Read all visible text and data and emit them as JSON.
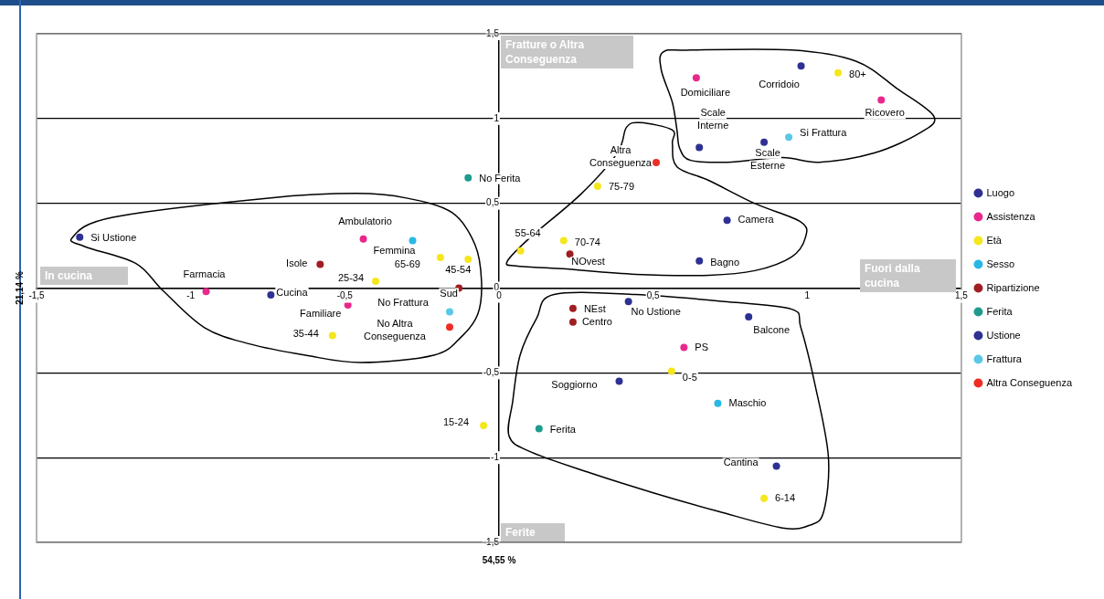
{
  "chart_data": {
    "type": "scatter",
    "xlabel": "54,55 %",
    "ylabel": "21,14 %",
    "xlim": [
      -1.5,
      1.5
    ],
    "ylim": [
      -1.5,
      1.5
    ],
    "xticks": [
      {
        "value": -1.5,
        "label": "-1,5"
      },
      -1,
      {
        "value": -0.5,
        "label": "-0,5"
      },
      0,
      {
        "value": 0.5,
        "label": "0,5"
      },
      1,
      {
        "value": 1.5,
        "label": "1,5"
      }
    ],
    "yticks": [
      {
        "value": -1.5,
        "label": "-1,5"
      },
      -1,
      {
        "value": -0.5,
        "label": "-0,5"
      },
      0,
      {
        "value": 0.5,
        "label": "0,5"
      },
      1,
      {
        "value": 1.5,
        "label": "1,5"
      }
    ],
    "grid": "y",
    "legend": "right",
    "marker": "circle",
    "series": [
      {
        "name": "Luogo",
        "color": "#2e3192",
        "x": [
          0.98,
          0.65,
          0.86,
          0.74,
          0.65,
          -0.74,
          0.39,
          0.81,
          0.9
        ],
        "values": [
          1.31,
          0.83,
          0.86,
          0.4,
          0.16,
          -0.04,
          -0.55,
          -0.17,
          -1.05
        ]
      },
      {
        "name": "Assistenza",
        "color": "#e8288c",
        "x": [
          0.64,
          1.24,
          -0.44,
          -0.95,
          -0.49,
          0.6
        ],
        "values": [
          1.24,
          1.11,
          0.29,
          -0.02,
          -0.1,
          -0.35
        ]
      },
      {
        "name": "Età",
        "color": "#f5e61e",
        "x": [
          1.1,
          0.32,
          0.07,
          0.21,
          -0.19,
          -0.1,
          -0.4,
          -0.54,
          -0.05,
          0.56,
          0.86
        ],
        "values": [
          1.27,
          0.6,
          0.22,
          0.28,
          0.18,
          0.17,
          0.04,
          -0.28,
          -0.81,
          -0.49,
          -1.24
        ]
      },
      {
        "name": "Sesso",
        "color": "#29b8e6",
        "x": [
          -0.28,
          0.71
        ],
        "values": [
          0.28,
          -0.68
        ]
      },
      {
        "name": "Ripartizione",
        "color": "#a01e22",
        "x": [
          -0.58,
          -0.13,
          0.23,
          0.24,
          0.24
        ],
        "values": [
          0.14,
          0.0,
          0.2,
          -0.12,
          -0.2
        ]
      },
      {
        "name": "Ferita",
        "color": "#1e9b8c",
        "x": [
          -0.1,
          0.13
        ],
        "values": [
          0.65,
          -0.83
        ]
      },
      {
        "name": "Ustione",
        "color": "#2e3192",
        "x": [
          -1.36,
          0.42
        ],
        "values": [
          0.3,
          -0.08
        ]
      },
      {
        "name": "Frattura",
        "color": "#5ac8e6",
        "x": [
          0.94,
          -0.16
        ],
        "values": [
          0.89,
          -0.14
        ]
      },
      {
        "name": "Altra Conseguenza",
        "color": "#ee2d24",
        "x": [
          0.51,
          -0.16
        ],
        "values": [
          0.74,
          -0.23
        ]
      }
    ],
    "annotations": [
      {
        "text": "Corridoio",
        "x": 0.98,
        "y": 1.31
      },
      {
        "text": "Scale Interne",
        "x": 0.65,
        "y": 0.83
      },
      {
        "text": "Scale Esterne",
        "x": 0.86,
        "y": 0.86
      },
      {
        "text": "Camera",
        "x": 0.74,
        "y": 0.4
      },
      {
        "text": "Bagno",
        "x": 0.65,
        "y": 0.16
      },
      {
        "text": "Cucina",
        "x": -0.74,
        "y": -0.04
      },
      {
        "text": "Soggiorno",
        "x": 0.39,
        "y": -0.55
      },
      {
        "text": "Balcone",
        "x": 0.81,
        "y": -0.17
      },
      {
        "text": "Cantina",
        "x": 0.9,
        "y": -1.05
      },
      {
        "text": "Domiciliare",
        "x": 0.64,
        "y": 1.24
      },
      {
        "text": "Ricovero",
        "x": 1.24,
        "y": 1.11
      },
      {
        "text": "Ambulatorio",
        "x": -0.44,
        "y": 0.29
      },
      {
        "text": "Farmacia",
        "x": -0.95,
        "y": -0.02
      },
      {
        "text": "Familiare",
        "x": -0.49,
        "y": -0.1
      },
      {
        "text": "PS",
        "x": 0.6,
        "y": -0.35
      },
      {
        "text": "80+",
        "x": 1.1,
        "y": 1.27
      },
      {
        "text": "75-79",
        "x": 0.32,
        "y": 0.6
      },
      {
        "text": "55-64",
        "x": 0.07,
        "y": 0.22
      },
      {
        "text": "70-74",
        "x": 0.21,
        "y": 0.28
      },
      {
        "text": "65-69",
        "x": -0.19,
        "y": 0.18
      },
      {
        "text": "45-54",
        "x": -0.1,
        "y": 0.17
      },
      {
        "text": "25-34",
        "x": -0.4,
        "y": 0.04
      },
      {
        "text": "35-44",
        "x": -0.54,
        "y": -0.28
      },
      {
        "text": "15-24",
        "x": -0.05,
        "y": -0.81
      },
      {
        "text": "0-5",
        "x": 0.56,
        "y": -0.49
      },
      {
        "text": "6-14",
        "x": 0.86,
        "y": -1.24
      },
      {
        "text": "Femmina",
        "x": -0.28,
        "y": 0.28
      },
      {
        "text": "Maschio",
        "x": 0.71,
        "y": -0.68
      },
      {
        "text": "Isole",
        "x": -0.58,
        "y": 0.14
      },
      {
        "text": "Sud",
        "x": -0.13,
        "y": 0.0
      },
      {
        "text": "NOvest",
        "x": 0.23,
        "y": 0.2
      },
      {
        "text": "NEst",
        "x": 0.24,
        "y": -0.12
      },
      {
        "text": "Centro",
        "x": 0.24,
        "y": -0.2
      },
      {
        "text": "No Ferita",
        "x": -0.1,
        "y": 0.65
      },
      {
        "text": "Ferita",
        "x": 0.13,
        "y": -0.83
      },
      {
        "text": "Si Ustione",
        "x": -1.36,
        "y": 0.3
      },
      {
        "text": "No Ustione",
        "x": 0.42,
        "y": -0.08
      },
      {
        "text": "Si Frattura",
        "x": 0.94,
        "y": 0.89
      },
      {
        "text": "No Frattura",
        "x": -0.16,
        "y": -0.14
      },
      {
        "text": "Altra Conseguenza",
        "x": 0.51,
        "y": 0.74
      },
      {
        "text": "No Altra Conseguenza",
        "x": -0.16,
        "y": -0.23
      },
      "Fratture o Altra Conseguenza",
      "In cucina",
      "Fuori dalla cucina",
      "Ferite"
    ]
  }
}
